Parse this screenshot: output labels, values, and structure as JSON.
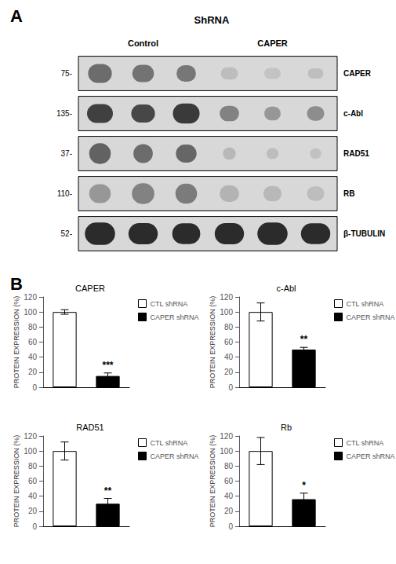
{
  "chart_data": [
    {
      "type": "blot",
      "annotation": "A",
      "title": "ShRNA",
      "columns": [
        {
          "label": "Control",
          "lanes": 3
        },
        {
          "label": "CAPER",
          "lanes": 3
        }
      ],
      "row_labels": [
        "CAPER",
        "c-Abl",
        "RAD51",
        "RB",
        "β-TUBULIN"
      ],
      "mw_labels": [
        "75-",
        "135-",
        "37-",
        "110-",
        "52-"
      ],
      "bands": [
        [
          0,
          0,
          0.35,
          0.55,
          0.55
        ],
        [
          0,
          1,
          0.38,
          0.5,
          0.5
        ],
        [
          0,
          2,
          0.4,
          0.45,
          0.48
        ],
        [
          0,
          3,
          0.72,
          0.4,
          0.35
        ],
        [
          0,
          4,
          0.75,
          0.38,
          0.32
        ],
        [
          0,
          5,
          0.73,
          0.36,
          0.3
        ],
        [
          1,
          0,
          0.15,
          0.6,
          0.55
        ],
        [
          1,
          1,
          0.18,
          0.55,
          0.52
        ],
        [
          1,
          2,
          0.12,
          0.62,
          0.58
        ],
        [
          1,
          3,
          0.45,
          0.45,
          0.45
        ],
        [
          1,
          4,
          0.55,
          0.38,
          0.4
        ],
        [
          1,
          5,
          0.5,
          0.4,
          0.42
        ],
        [
          2,
          0,
          0.3,
          0.5,
          0.6
        ],
        [
          2,
          1,
          0.35,
          0.45,
          0.55
        ],
        [
          2,
          2,
          0.32,
          0.48,
          0.52
        ],
        [
          2,
          3,
          0.7,
          0.3,
          0.35
        ],
        [
          2,
          4,
          0.72,
          0.28,
          0.32
        ],
        [
          2,
          5,
          0.74,
          0.26,
          0.3
        ],
        [
          3,
          0,
          0.55,
          0.5,
          0.55
        ],
        [
          3,
          1,
          0.45,
          0.52,
          0.6
        ],
        [
          3,
          2,
          0.42,
          0.5,
          0.58
        ],
        [
          3,
          3,
          0.68,
          0.45,
          0.48
        ],
        [
          3,
          4,
          0.7,
          0.42,
          0.45
        ],
        [
          3,
          5,
          0.72,
          0.4,
          0.42
        ],
        [
          4,
          0,
          0.05,
          0.7,
          0.65
        ],
        [
          4,
          1,
          0.05,
          0.68,
          0.62
        ],
        [
          4,
          2,
          0.05,
          0.65,
          0.6
        ],
        [
          4,
          3,
          0.05,
          0.68,
          0.62
        ],
        [
          4,
          4,
          0.05,
          0.7,
          0.65
        ],
        [
          4,
          5,
          0.05,
          0.68,
          0.6
        ]
      ]
    },
    {
      "type": "bar",
      "annotation": "B",
      "title": "CAPER",
      "ylabel": "PROTEIN EXPRESSION (%)",
      "categories": [
        null,
        null
      ],
      "series": [
        {
          "name": "CTL shRNA",
          "color": "white",
          "values": [
            100,
            null
          ],
          "errors": [
            3,
            null
          ],
          "annotations": [
            null,
            null
          ]
        },
        {
          "name": "CAPER shRNA",
          "color": "black",
          "values": [
            null,
            15
          ],
          "errors": [
            null,
            4
          ],
          "annotations": [
            null,
            "***"
          ]
        }
      ],
      "ylim": [
        0,
        120
      ],
      "yticks": [
        0,
        20,
        40,
        60,
        80,
        100,
        120
      ],
      "legend": "upper right",
      "grid": false,
      "tick_labels": "y"
    },
    {
      "type": "bar",
      "title": "c-Abl",
      "ylabel": "PROTEIN EXPRESSION (%)",
      "categories": [
        null,
        null
      ],
      "series": [
        {
          "name": "CTL shRNA",
          "color": "white",
          "values": [
            100,
            null
          ],
          "errors": [
            12,
            null
          ],
          "annotations": [
            null,
            null
          ]
        },
        {
          "name": "CAPER shRNA",
          "color": "black",
          "values": [
            null,
            50
          ],
          "errors": [
            null,
            3
          ],
          "annotations": [
            null,
            "**"
          ]
        }
      ],
      "ylim": [
        0,
        120
      ],
      "yticks": [
        0,
        20,
        40,
        60,
        80,
        100,
        120
      ],
      "legend": "upper right",
      "grid": false,
      "tick_labels": "y"
    },
    {
      "type": "bar",
      "title": "RAD51",
      "ylabel": "PROTEIN EXPRESSION (%)",
      "categories": [
        null,
        null
      ],
      "series": [
        {
          "name": "CTL shRNA",
          "color": "white",
          "values": [
            100,
            null
          ],
          "errors": [
            12,
            null
          ],
          "annotations": [
            null,
            null
          ]
        },
        {
          "name": "CAPER shRNA",
          "color": "black",
          "values": [
            null,
            30
          ],
          "errors": [
            null,
            7
          ],
          "annotations": [
            null,
            "**"
          ]
        }
      ],
      "ylim": [
        0,
        120
      ],
      "yticks": [
        0,
        20,
        40,
        60,
        80,
        100,
        120
      ],
      "legend": "upper right",
      "grid": false,
      "tick_labels": "y"
    },
    {
      "type": "bar",
      "title": "Rb",
      "ylabel": "PROTEIN EXPRESSION (%)",
      "categories": [
        null,
        null
      ],
      "series": [
        {
          "name": "CTL shRNA",
          "color": "white",
          "values": [
            100,
            null
          ],
          "errors": [
            18,
            null
          ],
          "annotations": [
            null,
            null
          ]
        },
        {
          "name": "CAPER shRNA",
          "color": "black",
          "values": [
            null,
            36
          ],
          "errors": [
            null,
            8
          ],
          "annotations": [
            null,
            "*"
          ]
        }
      ],
      "ylim": [
        0,
        120
      ],
      "yticks": [
        0,
        20,
        40,
        60,
        80,
        100,
        120
      ],
      "legend": "upper right",
      "grid": false,
      "tick_labels": "y"
    }
  ]
}
